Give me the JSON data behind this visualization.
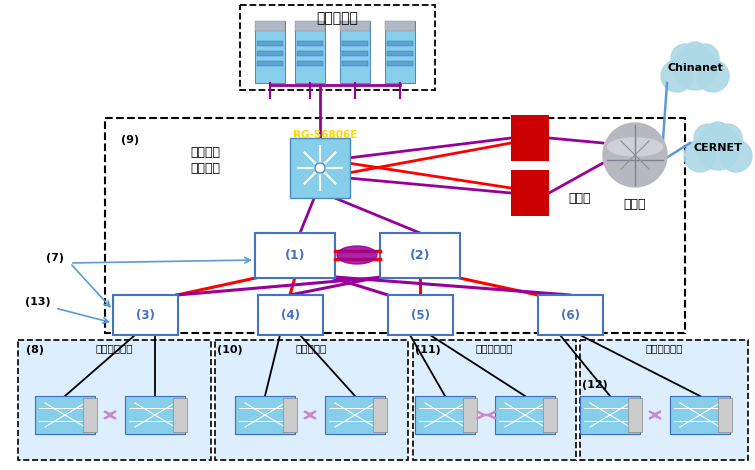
{
  "bg_color": "#ffffff",
  "server_area_label": "服务器区域",
  "campus_label1": "校园网络",
  "campus_label2": "信息中心",
  "core_label": "RG-S6806E",
  "router_label": "路由器",
  "firewall_label": "防火墙",
  "chinanet_label": "Chinanet",
  "cernet_label": "CERNET",
  "area3_label": "教学科研区域",
  "area4_label": "图书馆区域",
  "area5_label": "行政办公区域",
  "area6_label": "学生宿舍区域",
  "label7": "(7)",
  "label8": "(8)",
  "label9": "(9)",
  "label10": "(10)",
  "label11": "(11)",
  "label12": "(12)",
  "label13": "(13)",
  "purple": "#990099",
  "red": "#ff0000",
  "blue_arrow": "#5b9bd5",
  "dark_red": "#cc0000",
  "box_border": "#4472C4",
  "box_bg": "#ffffff",
  "zone_bg": "#ddeeff",
  "switch_bg": "#87CEEB",
  "server_color": "#5ba3d0"
}
